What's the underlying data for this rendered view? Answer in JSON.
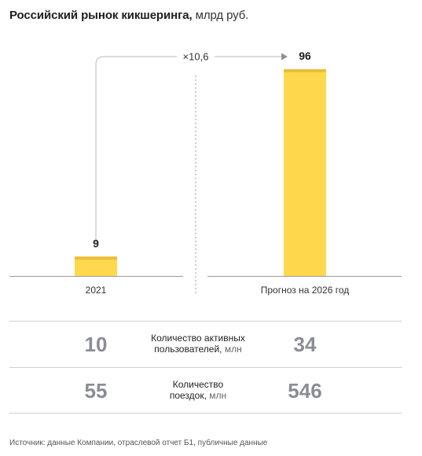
{
  "title": {
    "main": "Российский рынок кикшеринга,",
    "unit": "млрд руб."
  },
  "chart_data": {
    "type": "bar",
    "categories": [
      "2021",
      "Прогноз на 2026 год"
    ],
    "values": [
      9,
      96
    ],
    "data_labels": [
      "9",
      "96"
    ],
    "growth_label": "×10,6",
    "bar_color": "#FFD84D",
    "bar_top_color": "#EBBE3A"
  },
  "stats": [
    {
      "label": "Количество активных",
      "label2": "пользователей,",
      "unit": "млн",
      "left": "10",
      "right": "34"
    },
    {
      "label": "Количество",
      "label2": "поездок,",
      "unit": "млн",
      "left": "55",
      "right": "546"
    }
  ],
  "source": "Источник: данные Компании, отраслевой отчет Б1, публичные данные"
}
